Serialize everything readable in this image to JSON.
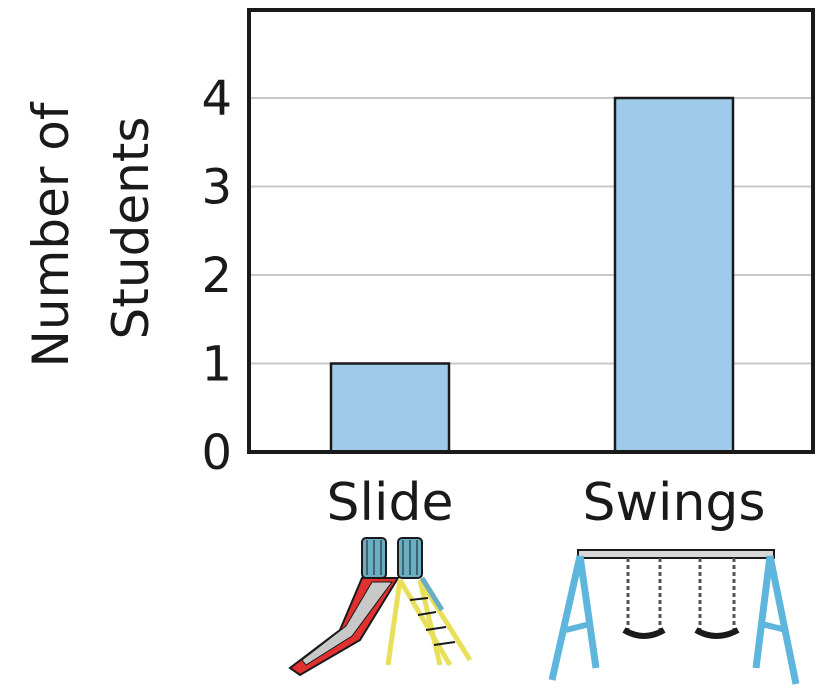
{
  "chart_data": {
    "type": "bar",
    "ylabel_lines": [
      "Number of",
      "Students"
    ],
    "categories": [
      "Slide",
      "Swings"
    ],
    "values": [
      1,
      4
    ],
    "yticks": [
      "0",
      "1",
      "2",
      "3",
      "4"
    ],
    "ylim": [
      0,
      5
    ],
    "grid": true,
    "colors": {
      "bar": "#9fcaea",
      "grid": "#c8c8c8",
      "axis": "#1a1a1a"
    },
    "icons": [
      "slide-icon",
      "swing-set-icon"
    ]
  }
}
